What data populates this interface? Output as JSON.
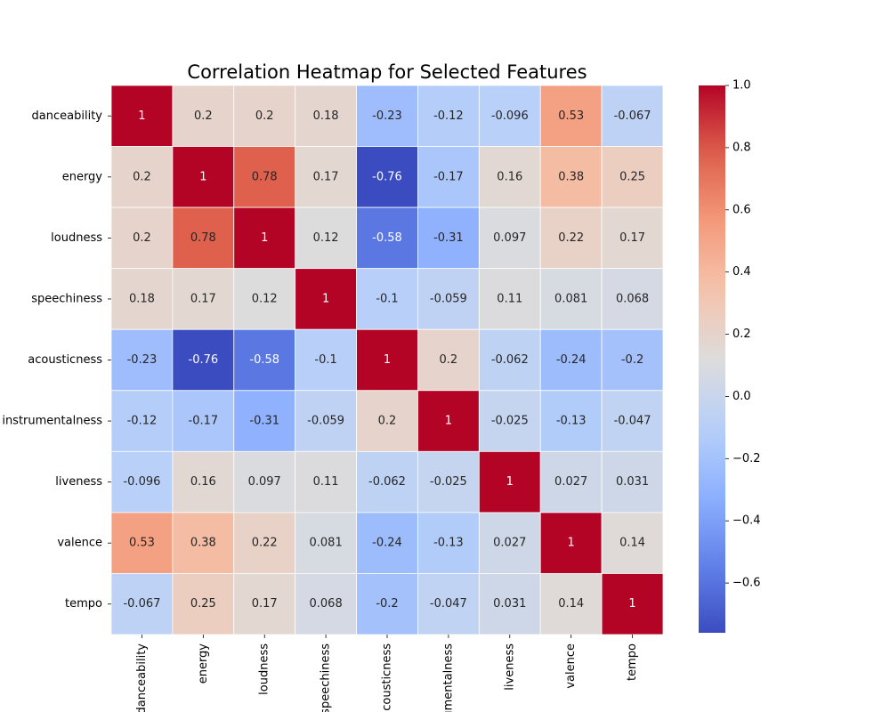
{
  "chart_data": {
    "type": "heatmap",
    "title": "Correlation Heatmap for Selected Features",
    "xlabel": "",
    "ylabel": "",
    "x_categories": [
      "danceability",
      "energy",
      "loudness",
      "speechiness",
      "acousticness",
      "instrumentalness",
      "liveness",
      "valence",
      "tempo"
    ],
    "y_categories": [
      "danceability",
      "energy",
      "loudness",
      "speechiness",
      "acousticness",
      "instrumentalness",
      "liveness",
      "valence",
      "tempo"
    ],
    "values": [
      [
        1,
        0.2,
        0.2,
        0.18,
        -0.23,
        -0.12,
        -0.096,
        0.53,
        -0.067
      ],
      [
        0.2,
        1,
        0.78,
        0.17,
        -0.76,
        -0.17,
        0.16,
        0.38,
        0.25
      ],
      [
        0.2,
        0.78,
        1,
        0.12,
        -0.58,
        -0.31,
        0.097,
        0.22,
        0.17
      ],
      [
        0.18,
        0.17,
        0.12,
        1,
        -0.1,
        -0.059,
        0.11,
        0.081,
        0.068
      ],
      [
        -0.23,
        -0.76,
        -0.58,
        -0.1,
        1,
        0.2,
        -0.062,
        -0.24,
        -0.2
      ],
      [
        -0.12,
        -0.17,
        -0.31,
        -0.059,
        0.2,
        1,
        -0.025,
        -0.13,
        -0.047
      ],
      [
        -0.096,
        0.16,
        0.097,
        0.11,
        -0.062,
        -0.025,
        1,
        0.027,
        0.031
      ],
      [
        0.53,
        0.38,
        0.22,
        0.081,
        -0.24,
        -0.13,
        0.027,
        1,
        0.14
      ],
      [
        -0.067,
        0.25,
        0.17,
        0.068,
        -0.2,
        -0.047,
        0.031,
        0.14,
        1
      ]
    ],
    "annotations": true,
    "colormap": "coolwarm",
    "color_low": "#3b4cc0",
    "color_mid": "#dddcdc",
    "color_high": "#b40426",
    "vmin": -0.76,
    "vmax": 1.0,
    "colorbar_ticks": [
      1.0,
      0.8,
      0.6,
      0.4,
      0.2,
      0.0,
      -0.2,
      -0.4,
      -0.6
    ],
    "colorbar_tick_labels": [
      "1.0",
      "0.8",
      "0.6",
      "0.4",
      "0.2",
      "0.0",
      "−0.2",
      "−0.4",
      "−0.6"
    ],
    "grid_line_color": "#ffffff",
    "legend": "colorbar-right"
  }
}
